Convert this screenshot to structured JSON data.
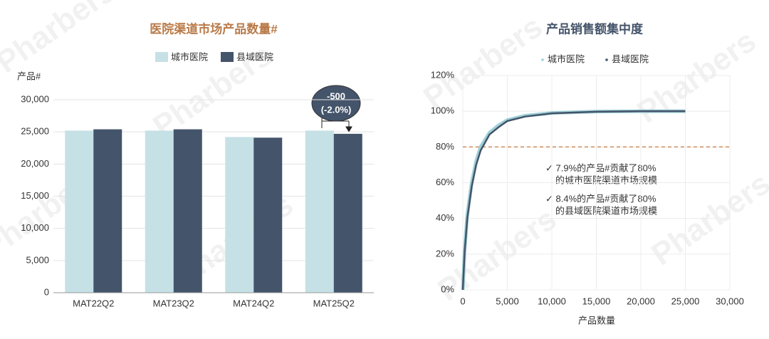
{
  "chart_data": [
    {
      "type": "bar",
      "title": "医院渠道市场产品数量#",
      "y_label": "产品#",
      "categories": [
        "MAT22Q2",
        "MAT23Q2",
        "MAT24Q2",
        "MAT25Q2"
      ],
      "series": [
        {
          "name": "城市医院",
          "color": "#c6e1e6",
          "values": [
            25200,
            25200,
            24200,
            25200
          ]
        },
        {
          "name": "县域医院",
          "color": "#44546a",
          "values": [
            25400,
            25400,
            24100,
            24700
          ]
        }
      ],
      "ylim": [
        0,
        30000
      ],
      "yticks": [
        0,
        {
          "value": 5000,
          "label": "5,000"
        },
        {
          "value": 10000,
          "label": "10,000"
        },
        {
          "value": 15000,
          "label": "15,000"
        },
        {
          "value": 20000,
          "label": "20,000"
        },
        {
          "value": 25000,
          "label": "25,000"
        },
        {
          "value": 30000,
          "label": "30,000"
        }
      ],
      "grid": true,
      "annotation": [
        "-500",
        "(-2.0%)"
      ]
    },
    {
      "type": "line",
      "title": "产品销售额集中度",
      "x_label": "产品数量",
      "x": [
        0,
        200,
        500,
        1000,
        1500,
        2000,
        3000,
        4000,
        5000,
        7000,
        10000,
        15000,
        20000,
        25000
      ],
      "series": [
        {
          "name": "城市医院",
          "color": "#9fd0d6",
          "values": [
            0,
            22,
            42,
            60,
            72,
            80,
            88,
            92,
            95,
            97.5,
            99,
            99.8,
            100,
            100
          ]
        },
        {
          "name": "县域医院",
          "color": "#44546a",
          "values": [
            0,
            21,
            40,
            58,
            70,
            78,
            87,
            91,
            94.5,
            97,
            98.8,
            99.7,
            100,
            100
          ]
        }
      ],
      "xlim": [
        0,
        30000
      ],
      "xticks": [
        0,
        {
          "value": 5000,
          "label": "5,000"
        },
        {
          "value": 10000,
          "label": "10,000"
        },
        {
          "value": 15000,
          "label": "15,000"
        },
        {
          "value": 20000,
          "label": "20,000"
        },
        {
          "value": 25000,
          "label": "25,000"
        },
        {
          "value": 30000,
          "label": "30,000"
        }
      ],
      "ylim": [
        0,
        120
      ],
      "yticks": [
        {
          "value": 0,
          "label": "0%"
        },
        {
          "value": 20,
          "label": "20%"
        },
        {
          "value": 40,
          "label": "40%"
        },
        {
          "value": 60,
          "label": "60%"
        },
        {
          "value": 80,
          "label": "80%"
        },
        {
          "value": 100,
          "label": "100%"
        },
        {
          "value": 120,
          "label": "120%"
        }
      ],
      "grid": true,
      "reference_line": {
        "value": 80,
        "color": "#d0824a"
      },
      "annotation": [
        "✓ 7.9%的产品#贡献了80%",
        "的城市医院渠道市场规模",
        "✓ 8.4%的产品#贡献了80%",
        "的县域医院渠道市场规模"
      ]
    }
  ],
  "watermark": "Pharbers"
}
